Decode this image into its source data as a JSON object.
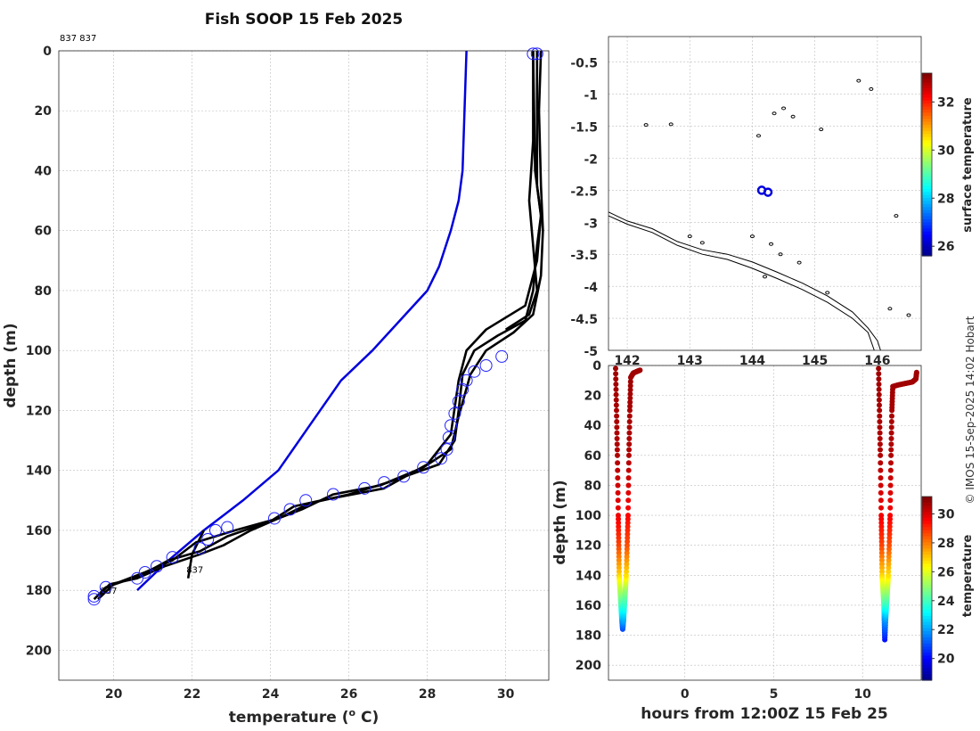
{
  "chart_data": [
    {
      "type": "line",
      "title": "Fish SOOP 15 Feb 2025",
      "corner_label": "837 837",
      "xlabel": "temperature (",
      "xlabel_sup": "o",
      "xlabel_end": " C)",
      "ylabel": "depth (m)",
      "xlim": [
        18.6,
        31.1
      ],
      "ylim": [
        210,
        0
      ],
      "xticks": [
        20,
        22,
        24,
        26,
        28,
        30
      ],
      "yticks": [
        0,
        20,
        40,
        60,
        80,
        100,
        120,
        140,
        160,
        180,
        200
      ],
      "climatology": {
        "name": "climatology",
        "color": "#0000dd",
        "points": [
          [
            29.0,
            0
          ],
          [
            28.95,
            20
          ],
          [
            28.9,
            40
          ],
          [
            28.8,
            50
          ],
          [
            28.6,
            60
          ],
          [
            28.3,
            72
          ],
          [
            28.0,
            80
          ],
          [
            27.3,
            90
          ],
          [
            26.6,
            100
          ],
          [
            25.8,
            110
          ],
          [
            25.0,
            125
          ],
          [
            24.2,
            140
          ],
          [
            23.3,
            150
          ],
          [
            22.3,
            160
          ],
          [
            21.4,
            170
          ],
          [
            20.6,
            180
          ]
        ]
      },
      "series": [
        {
          "name": "profile-1",
          "points": [
            [
              30.8,
              0
            ],
            [
              30.8,
              30
            ],
            [
              30.8,
              45
            ],
            [
              30.9,
              55
            ],
            [
              30.8,
              65
            ],
            [
              30.7,
              80
            ],
            [
              30.5,
              90
            ],
            [
              29.8,
              95
            ],
            [
              29.2,
              100
            ],
            [
              28.9,
              108
            ],
            [
              28.8,
              120
            ],
            [
              28.7,
              130
            ],
            [
              28.3,
              138
            ],
            [
              27.0,
              144
            ],
            [
              26.0,
              148
            ],
            [
              25.0,
              151
            ],
            [
              24.2,
              156
            ],
            [
              23.5,
              160
            ],
            [
              22.8,
              165
            ],
            [
              22.2,
              168
            ],
            [
              21.3,
              172
            ],
            [
              20.6,
              176
            ],
            [
              19.9,
              178
            ],
            [
              19.6,
              182
            ]
          ]
        },
        {
          "name": "profile-2",
          "points": [
            [
              30.7,
              0
            ],
            [
              30.75,
              40
            ],
            [
              30.9,
              55
            ],
            [
              30.8,
              70
            ],
            [
              30.5,
              85
            ],
            [
              29.5,
              93
            ],
            [
              29.0,
              100
            ],
            [
              28.8,
              110
            ],
            [
              28.6,
              128
            ],
            [
              28.0,
              138
            ],
            [
              26.9,
              146
            ],
            [
              25.3,
              150
            ],
            [
              24.6,
              152
            ],
            [
              24.0,
              157
            ],
            [
              22.9,
              162
            ],
            [
              22.2,
              167
            ],
            [
              21.4,
              170
            ],
            [
              20.7,
              175
            ],
            [
              19.8,
              179
            ],
            [
              19.5,
              183
            ]
          ]
        },
        {
          "name": "profile-3",
          "points": [
            [
              30.9,
              0
            ],
            [
              30.85,
              20
            ],
            [
              30.9,
              45
            ],
            [
              30.95,
              60
            ],
            [
              30.9,
              75
            ],
            [
              30.7,
              88
            ],
            [
              30.2,
              94
            ],
            [
              29.5,
              100
            ],
            [
              29.1,
              108
            ],
            [
              28.8,
              122
            ],
            [
              28.6,
              133
            ],
            [
              27.9,
              139
            ],
            [
              26.8,
              145
            ],
            [
              25.6,
              148
            ],
            [
              24.8,
              153
            ],
            [
              24.2,
              156
            ],
            [
              23.1,
              160
            ],
            [
              22.1,
              164
            ],
            [
              21.5,
              170
            ],
            [
              20.8,
              174
            ],
            [
              20.0,
              178
            ],
            [
              19.6,
              183
            ]
          ]
        },
        {
          "name": "profile-4",
          "points": [
            [
              30.7,
              0
            ],
            [
              30.7,
              30
            ],
            [
              30.6,
              50
            ],
            [
              30.7,
              65
            ],
            [
              30.8,
              80
            ],
            [
              30.6,
              88
            ],
            [
              30.0,
              93
            ]
          ]
        },
        {
          "name": "profile-837",
          "points": [
            [
              22.3,
              160
            ],
            [
              22.0,
              168
            ],
            [
              21.9,
              176
            ]
          ]
        }
      ],
      "markers": [
        [
          30.8,
          1
        ],
        [
          30.7,
          1
        ],
        [
          29.9,
          102
        ],
        [
          29.5,
          105
        ],
        [
          29.2,
          107
        ],
        [
          29.0,
          110
        ],
        [
          28.9,
          113
        ],
        [
          28.8,
          117
        ],
        [
          28.7,
          121
        ],
        [
          28.6,
          125
        ],
        [
          28.55,
          129
        ],
        [
          28.5,
          133
        ],
        [
          28.35,
          136
        ],
        [
          27.9,
          139
        ],
        [
          27.4,
          142
        ],
        [
          26.9,
          144
        ],
        [
          26.4,
          146
        ],
        [
          25.6,
          148
        ],
        [
          24.9,
          150
        ],
        [
          24.5,
          153
        ],
        [
          24.1,
          156
        ],
        [
          22.9,
          159
        ],
        [
          22.6,
          160
        ],
        [
          22.4,
          163
        ],
        [
          22.2,
          166
        ],
        [
          21.5,
          169
        ],
        [
          21.1,
          172
        ],
        [
          20.8,
          174
        ],
        [
          20.6,
          176
        ],
        [
          19.8,
          179
        ],
        [
          19.5,
          182
        ],
        [
          19.5,
          183
        ]
      ],
      "annotations": [
        {
          "text": "837",
          "x": 21.9,
          "y": 176
        },
        {
          "text": "837",
          "x": 19.7,
          "y": 183
        }
      ]
    },
    {
      "type": "scatter",
      "xlim": [
        141.7,
        146.7
      ],
      "ylim": [
        -5,
        -0.1
      ],
      "xticks": [
        142,
        143,
        144,
        145,
        146
      ],
      "xtick_labels": [
        "142",
        "143",
        "144",
        "145",
        "146"
      ],
      "yticks": [
        -0.5,
        -1,
        -1.5,
        -2,
        -2.5,
        -3,
        -3.5,
        -4,
        -4.5,
        -5
      ],
      "ytick_labels": [
        "-0.5",
        "-1",
        "-1.5",
        "-2",
        "-2.5",
        "-3",
        "-3.5",
        "-4",
        "-4.5",
        "-5"
      ],
      "ship_positions": [
        [
          144.15,
          -2.5
        ],
        [
          144.25,
          -2.53
        ]
      ],
      "coast_outer": [
        [
          141.7,
          -2.84
        ],
        [
          142.0,
          -2.98
        ],
        [
          142.4,
          -3.1
        ],
        [
          142.8,
          -3.3
        ],
        [
          143.2,
          -3.43
        ],
        [
          143.6,
          -3.5
        ],
        [
          144.0,
          -3.62
        ],
        [
          144.4,
          -3.78
        ],
        [
          144.8,
          -3.95
        ],
        [
          145.2,
          -4.15
        ],
        [
          145.6,
          -4.4
        ],
        [
          145.85,
          -4.65
        ],
        [
          146.0,
          -4.85
        ],
        [
          146.05,
          -5.0
        ]
      ],
      "coast_inner": [
        [
          141.7,
          -2.9
        ],
        [
          142.0,
          -3.03
        ],
        [
          142.4,
          -3.16
        ],
        [
          142.8,
          -3.36
        ],
        [
          143.2,
          -3.5
        ],
        [
          143.6,
          -3.58
        ],
        [
          144.0,
          -3.72
        ],
        [
          144.4,
          -3.88
        ],
        [
          144.8,
          -4.05
        ],
        [
          145.2,
          -4.25
        ],
        [
          145.6,
          -4.5
        ],
        [
          145.85,
          -4.72
        ],
        [
          145.95,
          -5.0
        ]
      ],
      "islands": [
        [
          142.3,
          -1.48
        ],
        [
          142.7,
          -1.47
        ],
        [
          144.1,
          -1.65
        ],
        [
          144.35,
          -1.3
        ],
        [
          144.5,
          -1.22
        ],
        [
          144.65,
          -1.35
        ],
        [
          145.1,
          -1.55
        ],
        [
          145.7,
          -0.79
        ],
        [
          145.9,
          -0.92
        ],
        [
          143.0,
          -3.22
        ],
        [
          143.2,
          -3.32
        ],
        [
          144.0,
          -3.22
        ],
        [
          144.3,
          -3.34
        ],
        [
          144.45,
          -3.5
        ],
        [
          144.75,
          -3.63
        ],
        [
          144.2,
          -3.85
        ],
        [
          145.2,
          -4.1
        ],
        [
          146.2,
          -4.35
        ],
        [
          146.5,
          -4.45
        ],
        [
          146.3,
          -2.9
        ]
      ],
      "colorbar": {
        "label": "surface temperature",
        "ticks": [
          26,
          28,
          30,
          32
        ],
        "range": [
          25.6,
          33.2
        ]
      }
    },
    {
      "type": "scatter",
      "xlabel": "hours from 12:00Z 15 Feb 25",
      "ylabel": "depth (m)",
      "xlim": [
        -4.3,
        13.3
      ],
      "ylim": [
        210,
        0
      ],
      "xticks": [
        0,
        5,
        10
      ],
      "yticks": [
        0,
        20,
        40,
        60,
        80,
        100,
        120,
        140,
        160,
        180,
        200
      ],
      "tows": [
        {
          "name": "tow-1",
          "points": [
            [
              -3.9,
              2,
              30.8
            ],
            [
              -3.85,
              30,
              30.7
            ],
            [
              -3.8,
              60,
              30.6
            ],
            [
              -3.75,
              100,
              29.8
            ],
            [
              -3.72,
              120,
              28.8
            ],
            [
              -3.7,
              140,
              27.0
            ],
            [
              -3.65,
              150,
              25.6
            ],
            [
              -3.6,
              160,
              24.2
            ],
            [
              -3.55,
              170,
              22.5
            ],
            [
              -3.5,
              176,
              21.0
            ],
            [
              -3.45,
              170,
              22.2
            ],
            [
              -3.4,
              160,
              23.8
            ],
            [
              -3.35,
              150,
              25.0
            ],
            [
              -3.3,
              140,
              26.8
            ],
            [
              -3.25,
              120,
              28.6
            ],
            [
              -3.2,
              100,
              29.6
            ],
            [
              -3.15,
              60,
              30.6
            ],
            [
              -3.1,
              30,
              30.7
            ],
            [
              -3.05,
              8,
              30.8
            ],
            [
              -2.9,
              5,
              30.8
            ],
            [
              -2.7,
              4,
              30.8
            ],
            [
              -2.5,
              3,
              30.8
            ]
          ]
        },
        {
          "name": "tow-2",
          "points": [
            [
              10.9,
              2,
              30.8
            ],
            [
              10.95,
              30,
              30.7
            ],
            [
              11.0,
              60,
              30.6
            ],
            [
              11.05,
              100,
              29.8
            ],
            [
              11.08,
              120,
              28.8
            ],
            [
              11.1,
              140,
              27.0
            ],
            [
              11.15,
              150,
              25.6
            ],
            [
              11.2,
              160,
              24.2
            ],
            [
              11.22,
              170,
              22.0
            ],
            [
              11.25,
              183,
              20.3
            ],
            [
              11.3,
              170,
              22.0
            ],
            [
              11.35,
              160,
              23.8
            ],
            [
              11.4,
              150,
              25.2
            ],
            [
              11.45,
              140,
              26.8
            ],
            [
              11.5,
              120,
              28.6
            ],
            [
              11.55,
              100,
              29.7
            ],
            [
              11.6,
              60,
              30.6
            ],
            [
              11.65,
              30,
              30.7
            ],
            [
              11.7,
              14,
              30.8
            ],
            [
              12.0,
              13,
              30.8
            ],
            [
              12.4,
              12,
              30.8
            ],
            [
              12.8,
              11,
              30.8
            ],
            [
              13.0,
              9,
              30.8
            ],
            [
              13.05,
              4,
              30.8
            ]
          ]
        }
      ],
      "colorbar": {
        "label": "temperature",
        "ticks": [
          20,
          22,
          24,
          26,
          28,
          30
        ],
        "range": [
          18.5,
          31.2
        ]
      }
    }
  ],
  "credit": "© IMOS 15-Sep-2025 14:02 Hobart",
  "colors": {
    "profile": "#000000",
    "climatology": "#0000dd",
    "marker": "#2222ff"
  }
}
